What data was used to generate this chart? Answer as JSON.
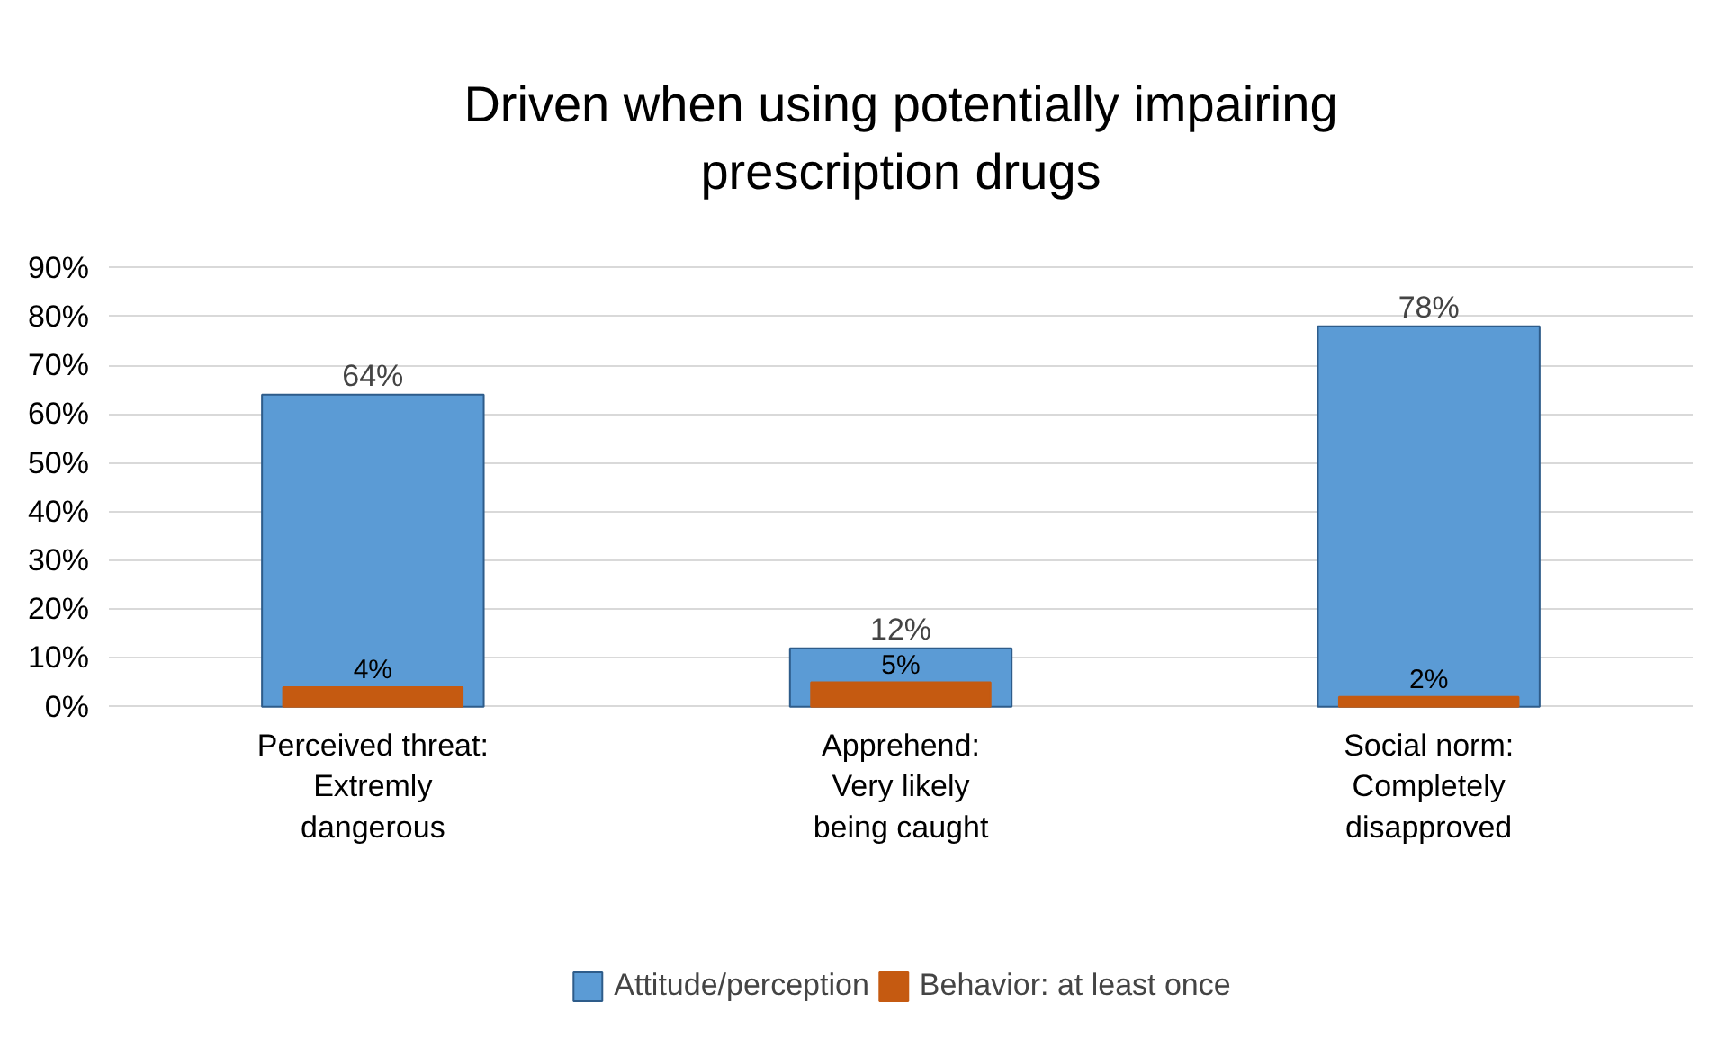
{
  "chart_data": {
    "type": "bar",
    "title": "Driven when using potentially impairing\nprescription drugs",
    "categories": [
      "Perceived threat:\nExtremly\ndangerous",
      "Apprehend:\nVery likely\nbeing caught",
      "Social norm:\nCompletely\ndisapproved"
    ],
    "series": [
      {
        "name": "Attitude/perception",
        "color": "#5b9bd5",
        "values": [
          64,
          12,
          78
        ],
        "value_labels": [
          "64%",
          "12%",
          "78%"
        ]
      },
      {
        "name": "Behavior: at least once",
        "color": "#c55a11",
        "values": [
          4,
          5,
          2
        ],
        "value_labels": [
          "4%",
          "5%",
          "2%"
        ]
      }
    ],
    "ylim": [
      0,
      90
    ],
    "yticks": [
      {
        "value": 0,
        "label": "0%"
      },
      {
        "value": 10,
        "label": "10%"
      },
      {
        "value": 20,
        "label": "20%"
      },
      {
        "value": 30,
        "label": "30%"
      },
      {
        "value": 40,
        "label": "40%"
      },
      {
        "value": 50,
        "label": "50%"
      },
      {
        "value": 60,
        "label": "60%"
      },
      {
        "value": 70,
        "label": "70%"
      },
      {
        "value": 80,
        "label": "80%"
      },
      {
        "value": 90,
        "label": "90%"
      }
    ],
    "grid": "y",
    "legend": "bottom"
  }
}
